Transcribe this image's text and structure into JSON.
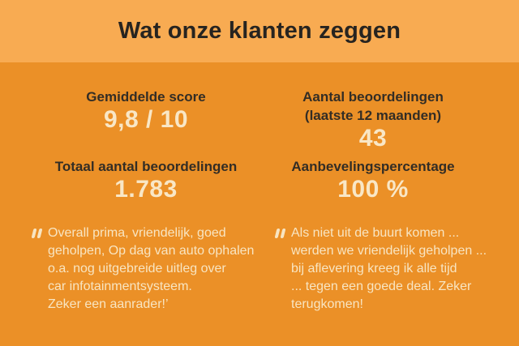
{
  "header": {
    "title": "Wat onze klanten zeggen"
  },
  "stats": [
    {
      "label": "Gemiddelde score",
      "value": "9,8 / 10"
    },
    {
      "label": "Aantal beoordelingen\n(laatste 12 maanden)",
      "value": "43"
    },
    {
      "label": "Totaal aantal beoordelingen",
      "value": "1.783"
    },
    {
      "label": "Aanbevelingspercentage",
      "value": "100 %"
    }
  ],
  "quotes": [
    {
      "icon": "double-quote-icon",
      "text": "Overall prima, vriendelijk, goed\ngeholpen, Op dag van auto ophalen\no.a. nog uitgebreide uitleg over\ncar infotainmentsysteem.\nZeker een aanrader!’"
    },
    {
      "icon": "double-quote-icon",
      "text": "Als niet uit de buurt komen ...\nwerden we vriendelijk geholpen ...\nbij aflevering kreeg ik alle tijd\n... tegen een goede deal. Zeker\nterugkomen!"
    }
  ],
  "colors": {
    "header_bg": "#F8AB52",
    "body_bg": "#EB9027",
    "dark_text": "#332D25",
    "title_text": "#272420",
    "cream_text": "#F9E7C6"
  }
}
